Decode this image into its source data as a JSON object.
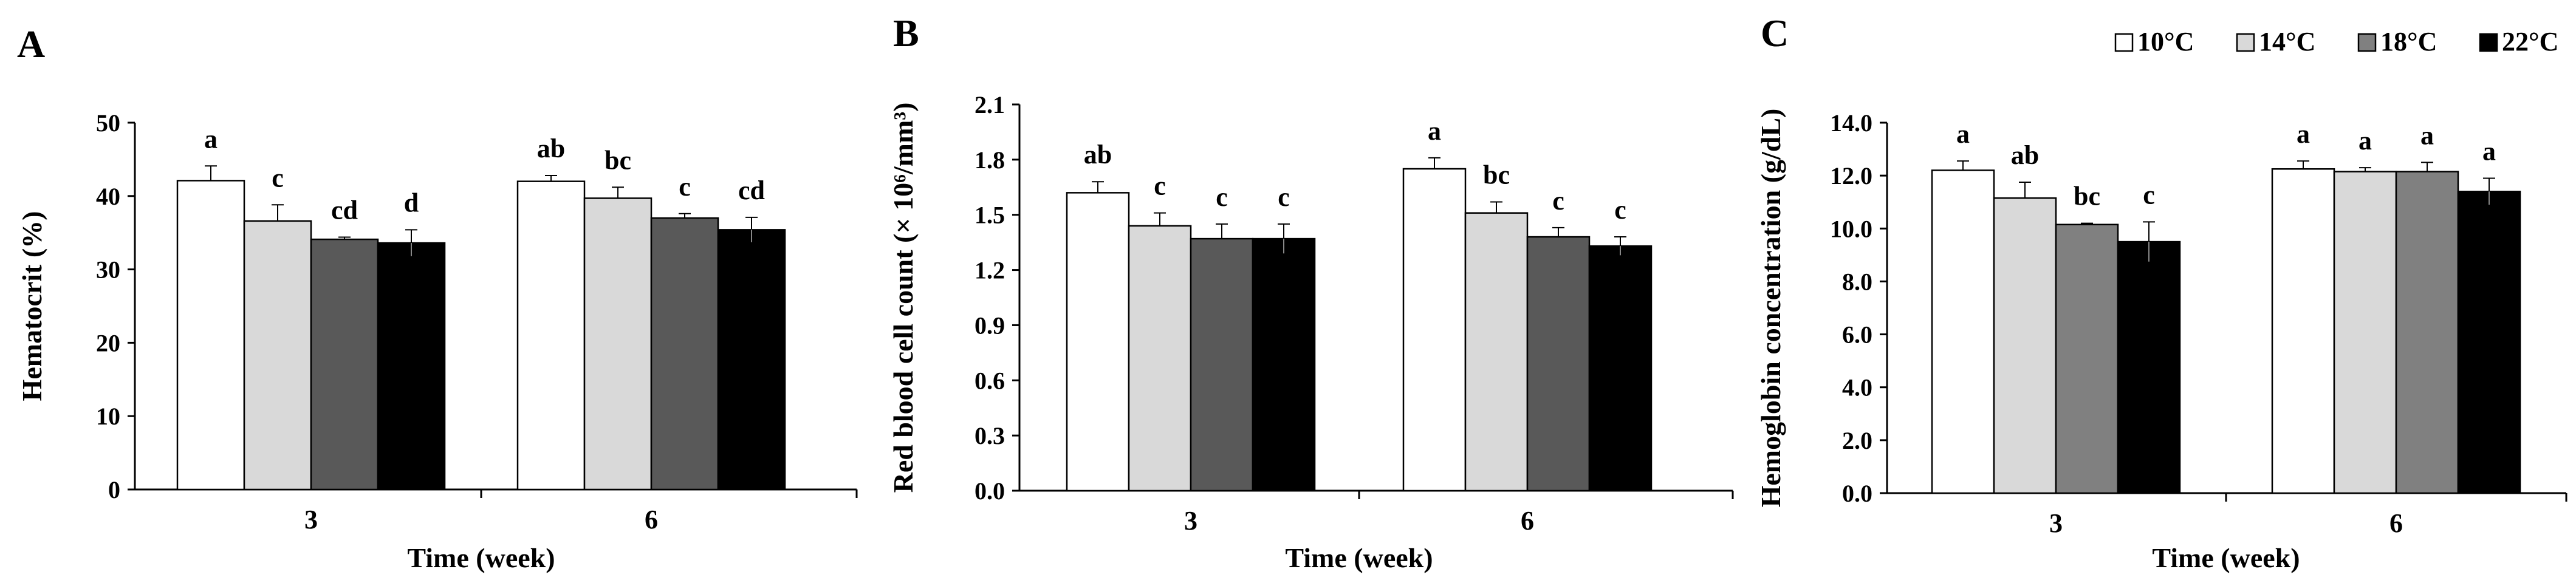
{
  "legend": [
    "10°C",
    "14°C",
    "18°C",
    "22°C"
  ],
  "colors": {
    "10°C": "#ffffff",
    "14°C": "#d9d9d9",
    "18°C": "#595959",
    "22°C": "#000000"
  },
  "colors_panel_c": {
    "10°C": "#ffffff",
    "14°C": "#d9d9d9",
    "18°C": "#808080",
    "22°C": "#000000"
  },
  "chart_data": [
    {
      "panel": "A",
      "type": "bar",
      "title": "",
      "xlabel": "Time (week)",
      "ylabel": "Hematocrit (%)",
      "categories": [
        "3",
        "6"
      ],
      "ylim": [
        0,
        50
      ],
      "yticks": [
        "0",
        "10",
        "20",
        "30",
        "40",
        "50"
      ],
      "series": [
        {
          "name": "10°C",
          "values": [
            42.1,
            42.0
          ],
          "errors": [
            2.0,
            0.8
          ],
          "letters": [
            "a",
            "ab"
          ]
        },
        {
          "name": "14°C",
          "values": [
            36.6,
            39.7
          ],
          "errors": [
            2.2,
            1.5
          ],
          "letters": [
            "c",
            "bc"
          ]
        },
        {
          "name": "18°C",
          "values": [
            34.1,
            37.0
          ],
          "errors": [
            0.3,
            0.6
          ],
          "letters": [
            "cd",
            "c"
          ]
        },
        {
          "name": "22°C",
          "values": [
            33.6,
            35.4
          ],
          "errors": [
            1.8,
            1.7
          ],
          "letters": [
            "d",
            "cd"
          ]
        }
      ]
    },
    {
      "panel": "B",
      "type": "bar",
      "title": "",
      "xlabel": "Time (week)",
      "ylabel": "Red blood cell count (× 10⁶/mm³)",
      "categories": [
        "3",
        "6"
      ],
      "ylim": [
        0,
        2.1
      ],
      "yticks": [
        "0.0",
        "0.3",
        "0.6",
        "0.9",
        "1.2",
        "1.5",
        "1.8",
        "2.1"
      ],
      "series": [
        {
          "name": "10°C",
          "values": [
            1.62,
            1.75
          ],
          "errors": [
            0.06,
            0.06
          ],
          "letters": [
            "ab",
            "a"
          ]
        },
        {
          "name": "14°C",
          "values": [
            1.44,
            1.51
          ],
          "errors": [
            0.07,
            0.06
          ],
          "letters": [
            "c",
            "bc"
          ]
        },
        {
          "name": "18°C",
          "values": [
            1.37,
            1.38
          ],
          "errors": [
            0.08,
            0.05
          ],
          "letters": [
            "c",
            "c"
          ]
        },
        {
          "name": "22°C",
          "values": [
            1.37,
            1.33
          ],
          "errors": [
            0.08,
            0.05
          ],
          "letters": [
            "c",
            "c"
          ]
        }
      ]
    },
    {
      "panel": "C",
      "type": "bar",
      "title": "",
      "xlabel": "Time (week)",
      "ylabel": "Hemoglobin concentration (g/dL)",
      "categories": [
        "3",
        "6"
      ],
      "ylim": [
        0,
        14
      ],
      "yticks": [
        "0.0",
        "2.0",
        "4.0",
        "6.0",
        "8.0",
        "10.0",
        "12.0",
        "14.0"
      ],
      "series": [
        {
          "name": "10°C",
          "values": [
            12.2,
            12.25
          ],
          "errors": [
            0.35,
            0.3
          ],
          "letters": [
            "a",
            "a"
          ]
        },
        {
          "name": "14°C",
          "values": [
            11.15,
            12.15
          ],
          "errors": [
            0.6,
            0.15
          ],
          "letters": [
            "ab",
            "a"
          ]
        },
        {
          "name": "18°C",
          "values": [
            10.15,
            12.15
          ],
          "errors": [
            0.05,
            0.35
          ],
          "letters": [
            "bc",
            "a"
          ]
        },
        {
          "name": "22°C",
          "values": [
            9.5,
            11.4
          ],
          "errors": [
            0.75,
            0.5
          ],
          "letters": [
            "c",
            "a"
          ]
        }
      ]
    }
  ]
}
